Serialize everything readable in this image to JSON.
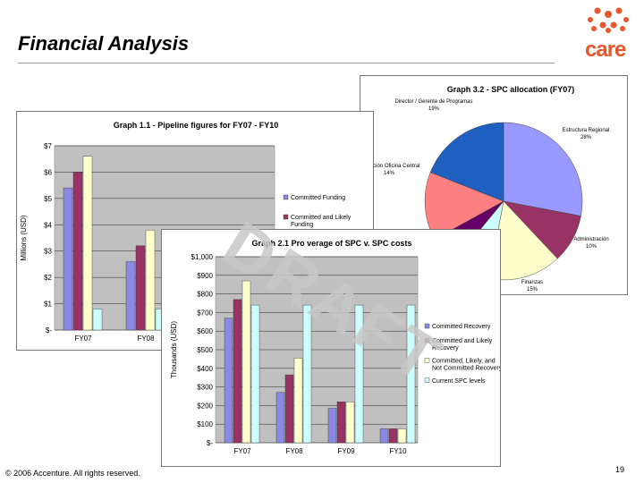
{
  "slide": {
    "title": "Financial Analysis",
    "footer": "© 2006 Accenture. All rights reserved.",
    "page_number": "19",
    "watermark": "DRAFT",
    "logo_text": "care"
  },
  "colors": {
    "purple": "#8a8ae6",
    "maroon": "#993366",
    "cream": "#ffffcc",
    "cyan": "#ccffff",
    "blue": "#1f5fbf",
    "salmon": "#ff8080",
    "violet": "#660066",
    "plot_bg": "#c0c0c0",
    "logo_orange": "#e8562a"
  },
  "chart_data": [
    {
      "type": "bar",
      "title": "Graph 1.1 - Pipeline figures for FY07 - FY10",
      "ylabel": "Millions (USD)",
      "ylim": [
        0,
        7
      ],
      "yticks": [
        "$-",
        "$1",
        "$2",
        "$3",
        "$4",
        "$5",
        "$6",
        "$7"
      ],
      "categories": [
        "FY07",
        "FY08"
      ],
      "series": [
        {
          "name": "Committed Funding",
          "values": [
            5.4,
            2.6
          ]
        },
        {
          "name": "Committed and Likely Funding",
          "values": [
            6.0,
            3.2
          ]
        },
        {
          "name": "",
          "values": [
            6.6,
            3.8
          ]
        },
        {
          "name": "",
          "values": [
            0.8,
            0.8
          ]
        }
      ]
    },
    {
      "type": "pie",
      "title": "Graph 3.2 - SPC allocation (FY07)",
      "slices": [
        {
          "label": "Estructura Regional\n28%",
          "value": 28
        },
        {
          "label": "Administración\n10%",
          "value": 10
        },
        {
          "label": "Finanzas\n15%",
          "value": 15
        },
        {
          "label": "",
          "value": 8
        },
        {
          "label": "",
          "value": 6
        },
        {
          "label": "Operación Oficina Central\n14%",
          "value": 14
        },
        {
          "label": "Director / Gerente de Programas\n19%",
          "value": 19
        }
      ]
    },
    {
      "type": "bar",
      "title": "Graph 2.1 Pro    verage of SPC v. SPC costs",
      "ylabel": "Thousands (USD)",
      "ylim": [
        0,
        1000
      ],
      "yticks": [
        "$-",
        "$100",
        "$200",
        "$300",
        "$400",
        "$500",
        "$600",
        "$700",
        "$800",
        "$900",
        "$1,000"
      ],
      "categories": [
        "FY07",
        "FY08",
        "FY09",
        "FY10"
      ],
      "series": [
        {
          "name": "Committed Recovery",
          "values": [
            670,
            270,
            185,
            75
          ]
        },
        {
          "name": "Committed and Likely Recovery",
          "values": [
            770,
            365,
            220,
            75
          ]
        },
        {
          "name": "Committed, Likely, and Not Committed Recovery",
          "values": [
            870,
            455,
            220,
            75
          ]
        },
        {
          "name": "Current SPC levels",
          "values": [
            740,
            740,
            740,
            740
          ]
        }
      ]
    }
  ]
}
